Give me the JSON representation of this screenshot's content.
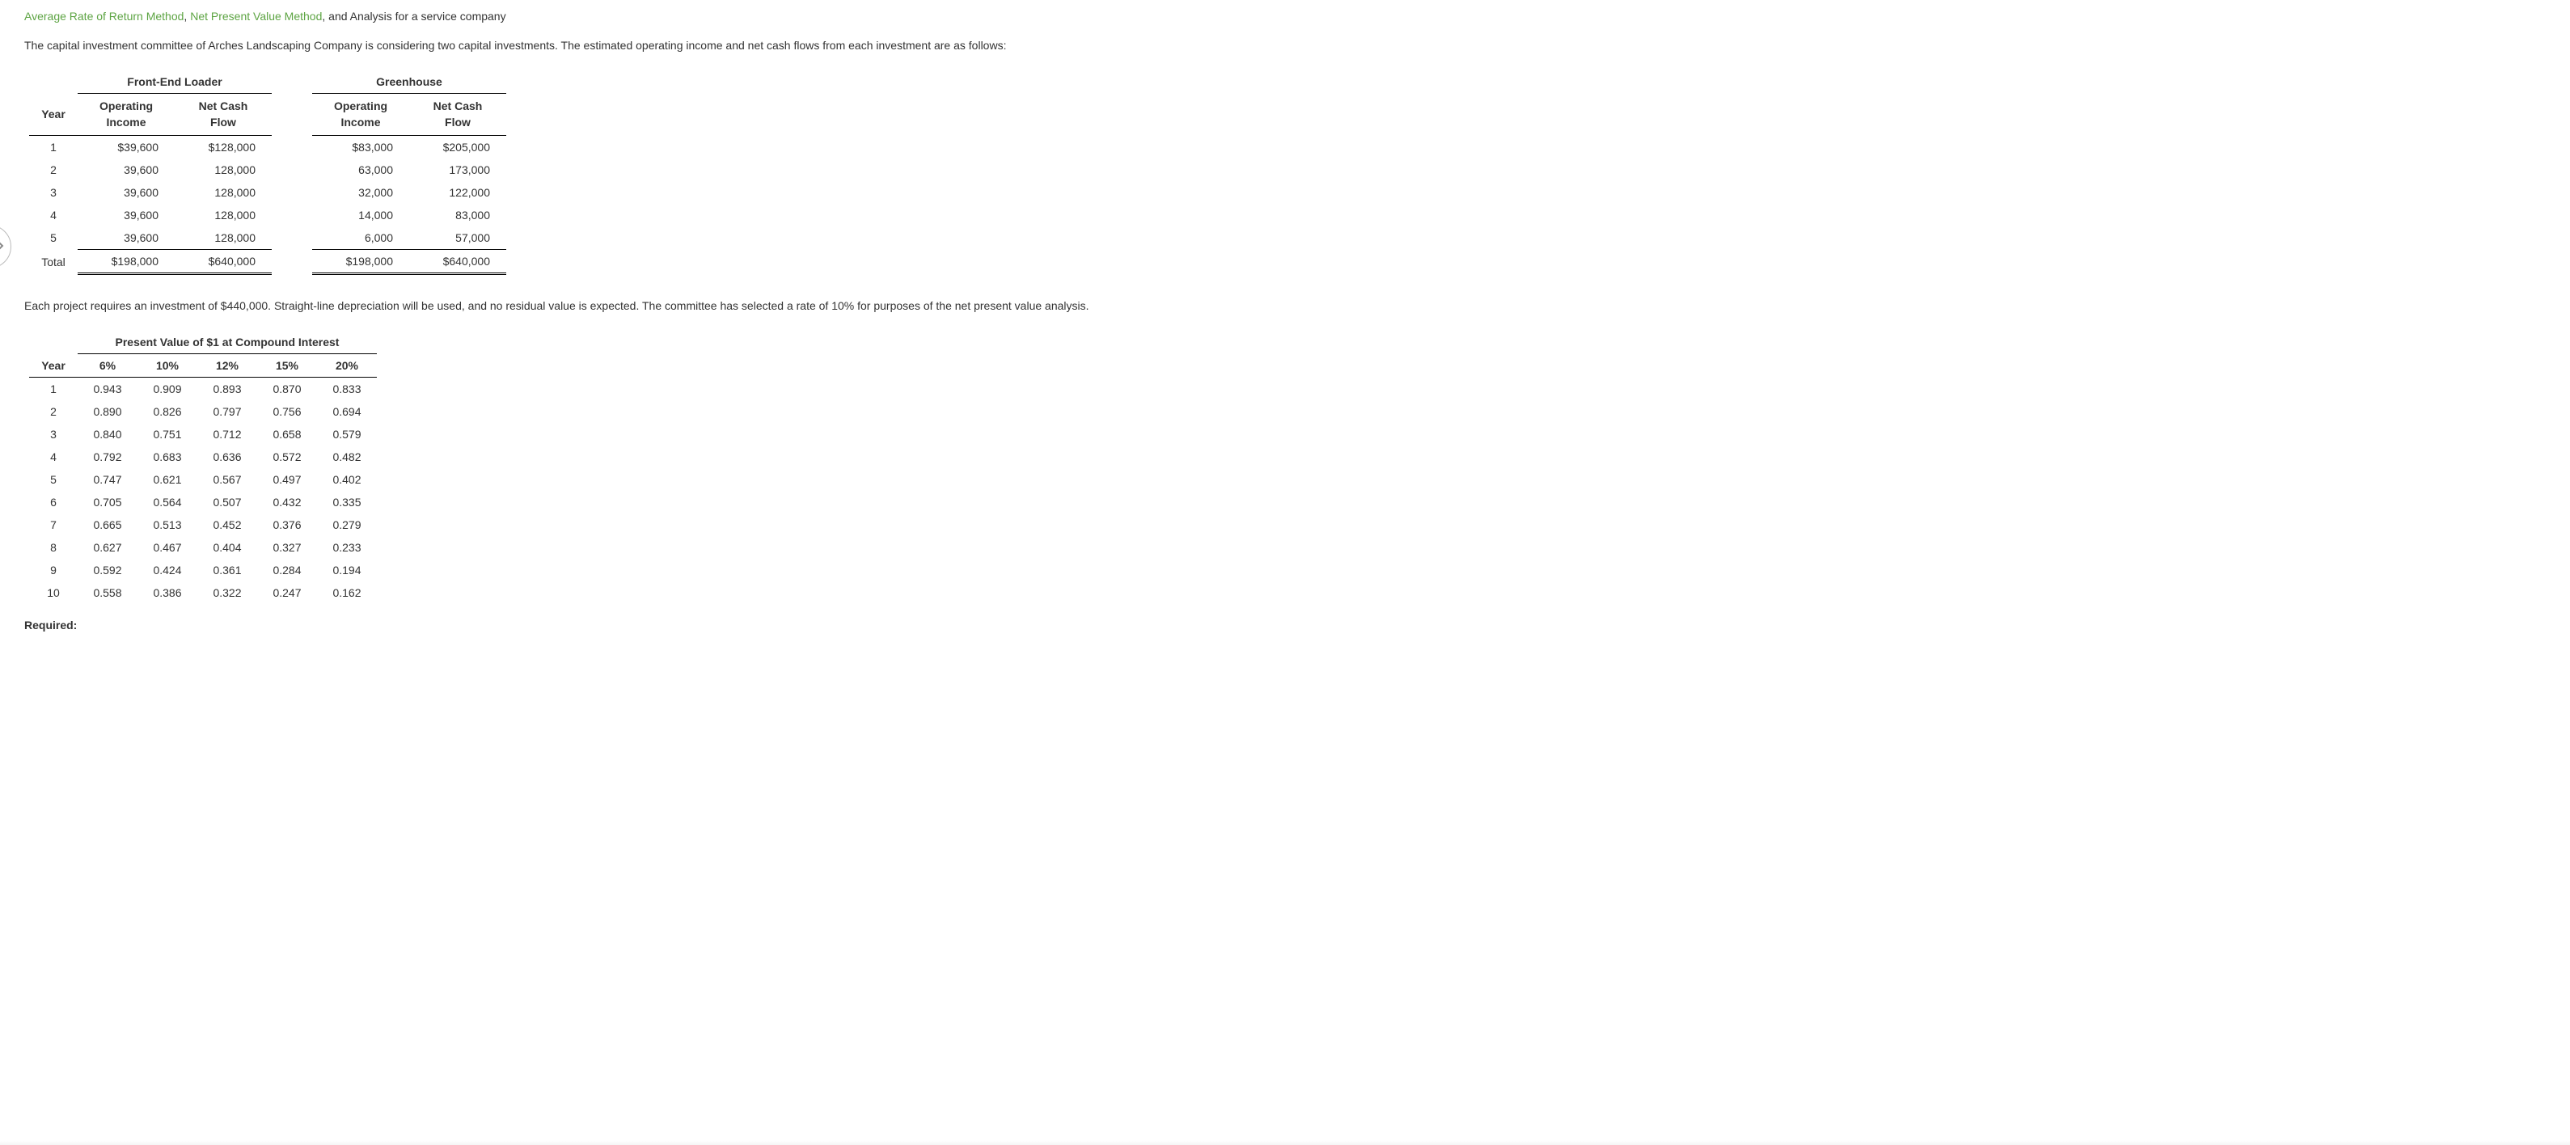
{
  "intro": {
    "link1": "Average Rate of Return Method",
    "sep1": ", ",
    "link2": "Net Present Value Method",
    "tail": ", and Analysis for a service company"
  },
  "para1": "The capital investment committee of Arches Landscaping Company is considering two capital investments. The estimated operating income and net cash flows from each investment are as follows:",
  "table1": {
    "group_a": "Front-End Loader",
    "group_b": "Greenhouse",
    "headers": {
      "year": "Year",
      "op_income": "Operating\nIncome",
      "net_cash": "Net Cash\nFlow"
    },
    "rows": [
      {
        "year": "1",
        "a_oi": "$39,600",
        "a_cf": "$128,000",
        "b_oi": "$83,000",
        "b_cf": "$205,000"
      },
      {
        "year": "2",
        "a_oi": "39,600",
        "a_cf": "128,000",
        "b_oi": "63,000",
        "b_cf": "173,000"
      },
      {
        "year": "3",
        "a_oi": "39,600",
        "a_cf": "128,000",
        "b_oi": "32,000",
        "b_cf": "122,000"
      },
      {
        "year": "4",
        "a_oi": "39,600",
        "a_cf": "128,000",
        "b_oi": "14,000",
        "b_cf": "83,000"
      },
      {
        "year": "5",
        "a_oi": "39,600",
        "a_cf": "128,000",
        "b_oi": "6,000",
        "b_cf": "57,000"
      }
    ],
    "total": {
      "label": "Total",
      "a_oi": "$198,000",
      "a_cf": "$640,000",
      "b_oi": "$198,000",
      "b_cf": "$640,000"
    }
  },
  "para2": "Each project requires an investment of $440,000. Straight-line depreciation will be used, and no residual value is expected. The committee has selected a rate of 10% for purposes of the net present value analysis.",
  "table2": {
    "title": "Present Value of $1 at Compound Interest",
    "headers": {
      "year": "Year",
      "c6": "6%",
      "c10": "10%",
      "c12": "12%",
      "c15": "15%",
      "c20": "20%"
    },
    "rows": [
      {
        "year": "1",
        "c6": "0.943",
        "c10": "0.909",
        "c12": "0.893",
        "c15": "0.870",
        "c20": "0.833"
      },
      {
        "year": "2",
        "c6": "0.890",
        "c10": "0.826",
        "c12": "0.797",
        "c15": "0.756",
        "c20": "0.694"
      },
      {
        "year": "3",
        "c6": "0.840",
        "c10": "0.751",
        "c12": "0.712",
        "c15": "0.658",
        "c20": "0.579"
      },
      {
        "year": "4",
        "c6": "0.792",
        "c10": "0.683",
        "c12": "0.636",
        "c15": "0.572",
        "c20": "0.482"
      },
      {
        "year": "5",
        "c6": "0.747",
        "c10": "0.621",
        "c12": "0.567",
        "c15": "0.497",
        "c20": "0.402"
      },
      {
        "year": "6",
        "c6": "0.705",
        "c10": "0.564",
        "c12": "0.507",
        "c15": "0.432",
        "c20": "0.335"
      },
      {
        "year": "7",
        "c6": "0.665",
        "c10": "0.513",
        "c12": "0.452",
        "c15": "0.376",
        "c20": "0.279"
      },
      {
        "year": "8",
        "c6": "0.627",
        "c10": "0.467",
        "c12": "0.404",
        "c15": "0.327",
        "c20": "0.233"
      },
      {
        "year": "9",
        "c6": "0.592",
        "c10": "0.424",
        "c12": "0.361",
        "c15": "0.284",
        "c20": "0.194"
      },
      {
        "year": "10",
        "c6": "0.558",
        "c10": "0.386",
        "c12": "0.322",
        "c15": "0.247",
        "c20": "0.162"
      }
    ]
  },
  "required_label": "Required:",
  "colors": {
    "link": "#5da443",
    "text": "#333333",
    "border": "#000000",
    "bg": "#ffffff"
  },
  "typography": {
    "font_family": "Verdana",
    "base_size_pt": 10.5,
    "bold_headers": true
  }
}
